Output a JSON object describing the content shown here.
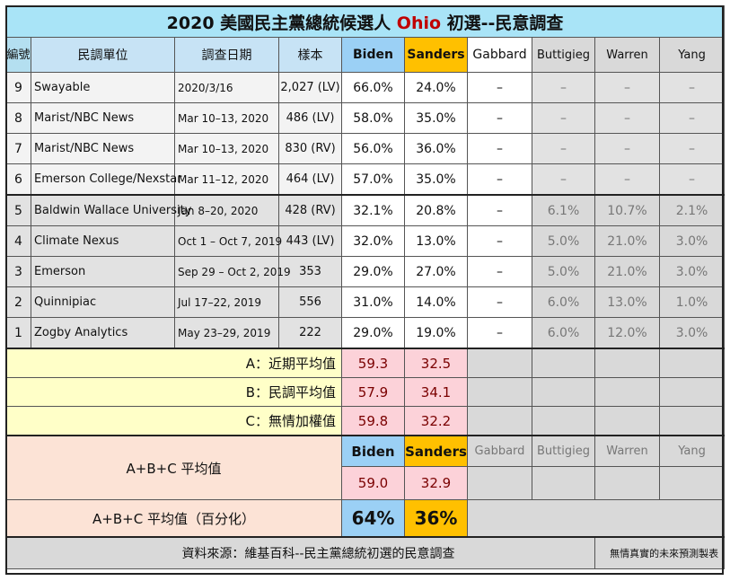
{
  "title": {
    "prefix": "2020 美國民主黨總統候選人 ",
    "state": "Ohio",
    "suffix": " 初選--民意調查"
  },
  "header": {
    "no": "編號",
    "pollster": "民調單位",
    "date": "調查日期",
    "sample": "樣本",
    "biden": "Biden",
    "sanders": "Sanders",
    "gabbard": "Gabbard",
    "buttigieg": "Buttigieg",
    "warren": "Warren",
    "yang": "Yang"
  },
  "rows": [
    {
      "no": "9",
      "pollster": "Swayable",
      "date": "2020/3/16",
      "sample": "2,027 (LV)",
      "biden": "66.0%",
      "sanders": "24.0%",
      "gabbard": "–",
      "buttigieg": "–",
      "warren": "–",
      "yang": "–"
    },
    {
      "no": "8",
      "pollster": "Marist/NBC News",
      "date": "Mar 10–13, 2020",
      "sample": "486 (LV)",
      "biden": "58.0%",
      "sanders": "35.0%",
      "gabbard": "–",
      "buttigieg": "–",
      "warren": "–",
      "yang": "–"
    },
    {
      "no": "7",
      "pollster": "Marist/NBC News",
      "date": "Mar 10–13, 2020",
      "sample": "830 (RV)",
      "biden": "56.0%",
      "sanders": "36.0%",
      "gabbard": "–",
      "buttigieg": "–",
      "warren": "–",
      "yang": "–"
    },
    {
      "no": "6",
      "pollster": "Emerson College/Nexstar",
      "date": "Mar 11–12, 2020",
      "sample": "464 (LV)",
      "biden": "57.0%",
      "sanders": "35.0%",
      "gabbard": "–",
      "buttigieg": "–",
      "warren": "–",
      "yang": "–"
    },
    {
      "no": "5",
      "pollster": "Baldwin Wallace University",
      "date": "Jan 8–20, 2020",
      "sample": "428 (RV)",
      "biden": "32.1%",
      "sanders": "20.8%",
      "gabbard": "–",
      "buttigieg": "6.1%",
      "warren": "10.7%",
      "yang": "2.1%"
    },
    {
      "no": "4",
      "pollster": "Climate Nexus",
      "date": "Oct 1 – Oct 7, 2019",
      "sample": "443 (LV)",
      "biden": "32.0%",
      "sanders": "13.0%",
      "gabbard": "–",
      "buttigieg": "5.0%",
      "warren": "21.0%",
      "yang": "3.0%"
    },
    {
      "no": "3",
      "pollster": "Emerson",
      "date": "Sep 29 – Oct 2, 2019",
      "sample": "353",
      "biden": "29.0%",
      "sanders": "27.0%",
      "gabbard": "–",
      "buttigieg": "5.0%",
      "warren": "21.0%",
      "yang": "3.0%"
    },
    {
      "no": "2",
      "pollster": "Quinnipiac",
      "date": "Jul 17–22, 2019",
      "sample": "556",
      "biden": "31.0%",
      "sanders": "14.0%",
      "gabbard": "–",
      "buttigieg": "6.0%",
      "warren": "13.0%",
      "yang": "1.0%"
    },
    {
      "no": "1",
      "pollster": "Zogby Analytics",
      "date": "May 23–29, 2019",
      "sample": "222",
      "biden": "29.0%",
      "sanders": "19.0%",
      "gabbard": "–",
      "buttigieg": "6.0%",
      "warren": "12.0%",
      "yang": "3.0%"
    }
  ],
  "averages": [
    {
      "label": "A：近期平均值",
      "biden": "59.3",
      "sanders": "32.5"
    },
    {
      "label": "B：民調平均值",
      "biden": "57.9",
      "sanders": "34.1"
    },
    {
      "label": "C：無情加權值",
      "biden": "59.8",
      "sanders": "32.2"
    }
  ],
  "combined": {
    "label": "A+B+C 平均值",
    "biden_label": "Biden",
    "sanders_label": "Sanders",
    "gabbard_label": "Gabbard",
    "buttigieg_label": "Buttigieg",
    "warren_label": "Warren",
    "yang_label": "Yang",
    "biden": "59.0",
    "sanders": "32.9"
  },
  "percent": {
    "label": "A+B+C  平均值（百分化）",
    "biden": "64%",
    "sanders": "36%"
  },
  "footer": {
    "source": "資料來源：維基百科--民主黨總統初選的民意調查",
    "credit": "無情真實的未來預測製表"
  },
  "colors": {
    "title_bg": "#a9e4f7",
    "biden": "#9bd0f5",
    "sanders": "#ffc000",
    "avg_value": "#fcd2d9",
    "avg_label": "#ffffc8",
    "combined_label": "#fce3d6",
    "state_highlight": "#c00000"
  }
}
